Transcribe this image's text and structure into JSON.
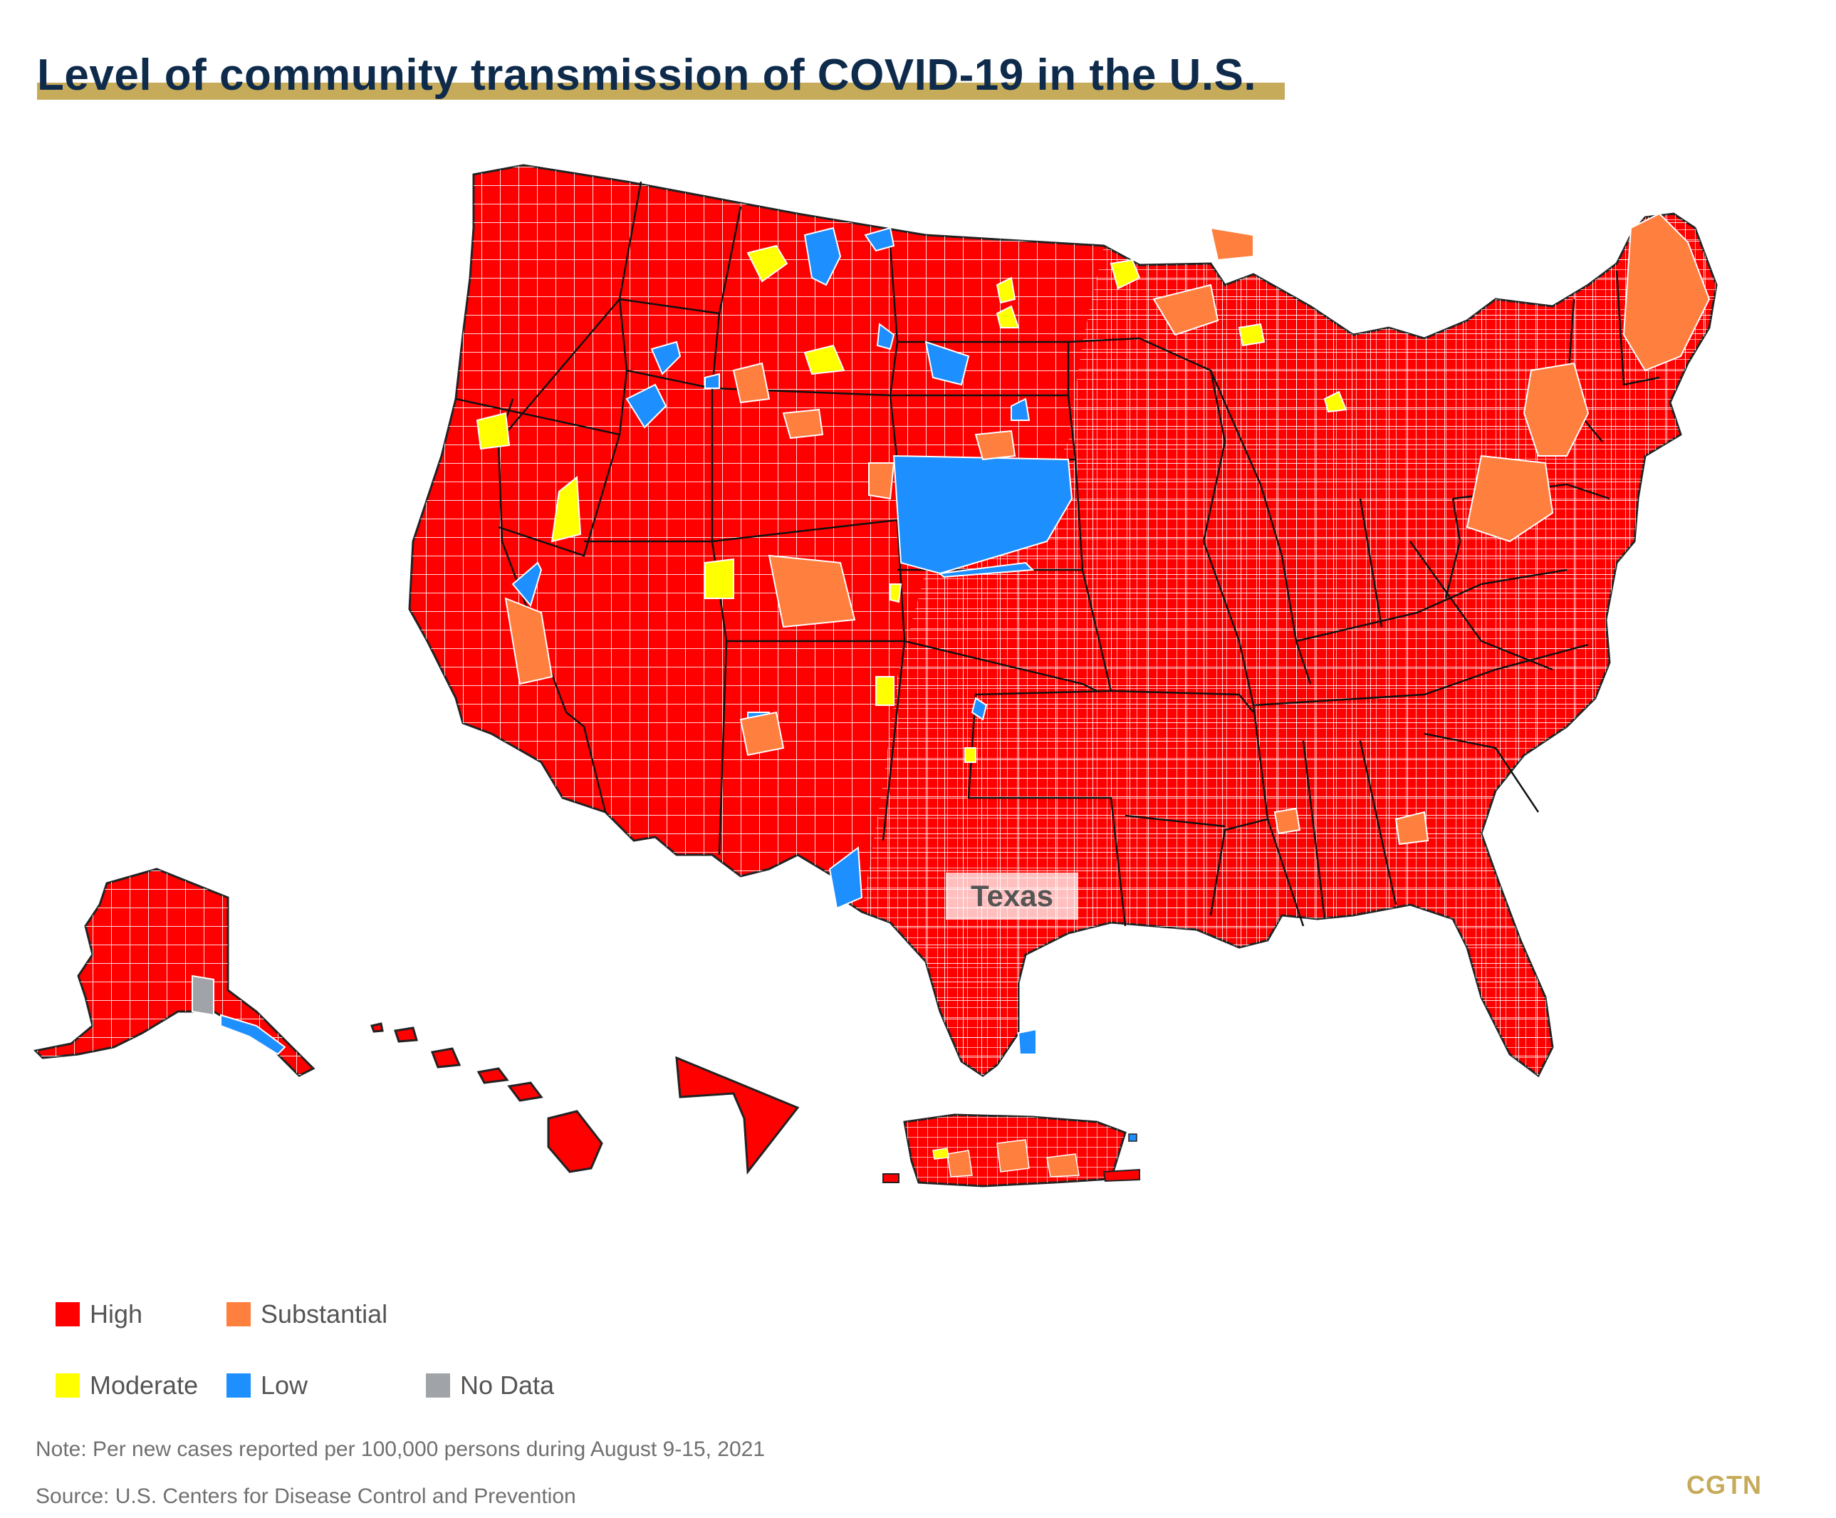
{
  "title": "Level of community transmission of COVID-19 in the U.S.",
  "colors": {
    "high": "#ff0000",
    "substantial": "#ff7f3f",
    "moderate": "#ffff00",
    "low": "#1e8fff",
    "no_data": "#a0a4a8",
    "title_text": "#0f2b4b",
    "accent_gold": "#c6ab5b"
  },
  "map": {
    "highlight_label": "Texas"
  },
  "legend": {
    "high": "High",
    "substantial": "Substantial",
    "moderate": "Moderate",
    "low": "Low",
    "no_data": "No Data"
  },
  "note": "Note: Per new cases reported per 100,000 persons during August 9-15, 2021",
  "source": "Source: U.S. Centers for Disease Control and Prevention",
  "brand": "CGTN"
}
